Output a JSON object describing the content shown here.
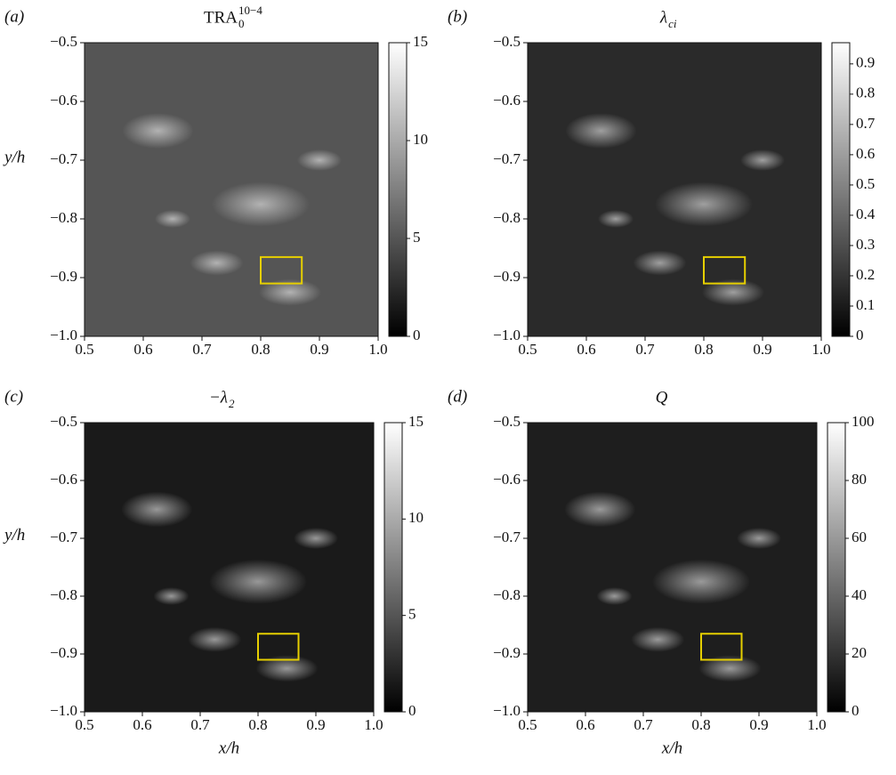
{
  "chart_data": [
    {
      "type": "heatmap",
      "panel_label": "(a)",
      "title": "TRA",
      "title_sub": "0",
      "title_sup": "10−4",
      "ylabel": "y/h",
      "cmap": "gray",
      "tone": "#555",
      "xlim": [
        0.5,
        1.0
      ],
      "ylim": [
        -1.0,
        -0.5
      ],
      "xticks": [
        0.5,
        0.6,
        0.7,
        0.8,
        0.9,
        {
          "value": 1,
          "label": "1.0"
        }
      ],
      "yticks": [
        {
          "value": -1,
          "label": "−1.0"
        },
        {
          "value": -0.9,
          "label": "−0.9"
        },
        {
          "value": -0.8,
          "label": "−0.8"
        },
        {
          "value": -0.7,
          "label": "−0.7"
        },
        {
          "value": -0.6,
          "label": "−0.6"
        },
        {
          "value": -0.5,
          "label": "−0.5"
        }
      ],
      "zlim": [
        0,
        15
      ],
      "zticks": [
        0,
        5,
        10,
        15
      ],
      "highlight": {
        "x": [
          0.8,
          0.87
        ],
        "y": [
          -0.91,
          -0.865
        ],
        "color": "#e6cf00"
      }
    },
    {
      "type": "heatmap",
      "panel_label": "(b)",
      "title": "λ",
      "title_sub": "ci",
      "cmap": "gray",
      "tone": "#2a2a2a",
      "xlim": [
        0.5,
        1.0
      ],
      "ylim": [
        -1.0,
        -0.5
      ],
      "xticks": [
        0.5,
        0.6,
        0.7,
        0.8,
        0.9,
        {
          "value": 1,
          "label": "1.0"
        }
      ],
      "yticks": [
        {
          "value": -1,
          "label": "−1.0"
        },
        {
          "value": -0.9,
          "label": "−0.9"
        },
        {
          "value": -0.8,
          "label": "−0.8"
        },
        {
          "value": -0.7,
          "label": "−0.7"
        },
        {
          "value": -0.6,
          "label": "−0.6"
        },
        {
          "value": -0.5,
          "label": "−0.5"
        }
      ],
      "zlim": [
        0,
        0.97
      ],
      "zticks": [
        0,
        0.1,
        0.2,
        0.3,
        0.4,
        0.5,
        0.6,
        0.7,
        0.8,
        0.9
      ],
      "highlight": {
        "x": [
          0.8,
          0.87
        ],
        "y": [
          -0.91,
          -0.865
        ],
        "color": "#e6cf00"
      }
    },
    {
      "type": "heatmap",
      "panel_label": "(c)",
      "title": "−λ",
      "title_sub": "2",
      "xlabel": "x/h",
      "ylabel": "y/h",
      "cmap": "gray",
      "tone": "#1a1a1a",
      "xlim": [
        0.5,
        1.0
      ],
      "ylim": [
        -1.0,
        -0.5
      ],
      "xticks": [
        0.5,
        0.6,
        0.7,
        0.8,
        0.9,
        {
          "value": 1,
          "label": "1.0"
        }
      ],
      "yticks": [
        {
          "value": -1,
          "label": "−1.0"
        },
        {
          "value": -0.9,
          "label": "−0.9"
        },
        {
          "value": -0.8,
          "label": "−0.8"
        },
        {
          "value": -0.7,
          "label": "−0.7"
        },
        {
          "value": -0.6,
          "label": "−0.6"
        },
        {
          "value": -0.5,
          "label": "−0.5"
        }
      ],
      "zlim": [
        0,
        15
      ],
      "zticks": [
        0,
        5,
        10,
        15
      ],
      "highlight": {
        "x": [
          0.8,
          0.87
        ],
        "y": [
          -0.91,
          -0.865
        ],
        "color": "#e6cf00"
      }
    },
    {
      "type": "heatmap",
      "panel_label": "(d)",
      "title": "Q",
      "xlabel": "x/h",
      "cmap": "gray",
      "tone": "#1e1e1e",
      "xlim": [
        0.5,
        1.0
      ],
      "ylim": [
        -1.0,
        -0.5
      ],
      "xticks": [
        0.5,
        0.6,
        0.7,
        0.8,
        0.9,
        {
          "value": 1,
          "label": "1.0"
        }
      ],
      "yticks": [
        {
          "value": -1,
          "label": "−1.0"
        },
        {
          "value": -0.9,
          "label": "−0.9"
        },
        {
          "value": -0.8,
          "label": "−0.8"
        },
        {
          "value": -0.7,
          "label": "−0.7"
        },
        {
          "value": -0.6,
          "label": "−0.6"
        },
        {
          "value": -0.5,
          "label": "−0.5"
        }
      ],
      "zlim": [
        0,
        100
      ],
      "zticks": [
        0,
        20,
        40,
        60,
        80,
        100
      ],
      "highlight": {
        "x": [
          0.8,
          0.87
        ],
        "y": [
          -0.91,
          -0.865
        ],
        "color": "#e6cf00"
      }
    }
  ]
}
